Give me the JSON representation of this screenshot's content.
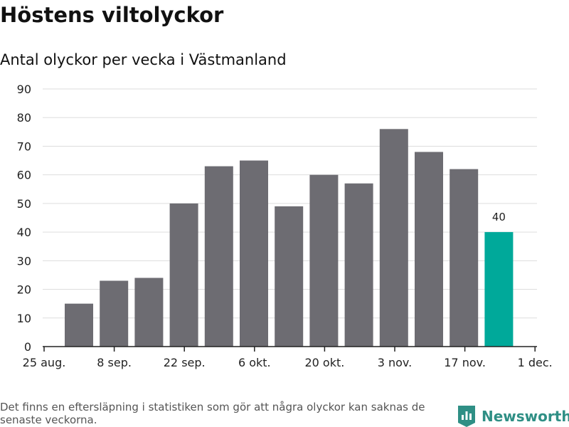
{
  "chart_data": {
    "type": "bar",
    "title": "Höstens viltolyckor",
    "subtitle": "Antal olyckor per vecka i Västmanland",
    "series": [
      {
        "values": [
          15,
          23,
          24,
          50,
          63,
          65,
          49,
          60,
          57,
          76,
          68,
          62,
          40
        ]
      }
    ],
    "x_ticks": [
      "25 aug.",
      "8 sep.",
      "22 sep.",
      "6 okt.",
      "20 okt.",
      "3 nov.",
      "17 nov.",
      "1 dec."
    ],
    "y_ticks": [
      "0",
      "10",
      "20",
      "30",
      "40",
      "50",
      "60",
      "70",
      "80",
      "90"
    ],
    "ylim": [
      0,
      90
    ],
    "grid": true,
    "bar_color": "#6d6c72",
    "highlight_color": "#00a99a",
    "highlight_index": 12,
    "data_labels": [
      {
        "index": 12,
        "text": "40"
      }
    ],
    "xlabel": "",
    "ylabel": ""
  },
  "footnote": "Det finns en eftersläpning i statistiken som gör att några olyckor kan saknas de senaste veckorna.",
  "brand": {
    "name": "Newsworthy",
    "icon": "newsworthy-logo-icon",
    "color": "#2f8f85"
  }
}
